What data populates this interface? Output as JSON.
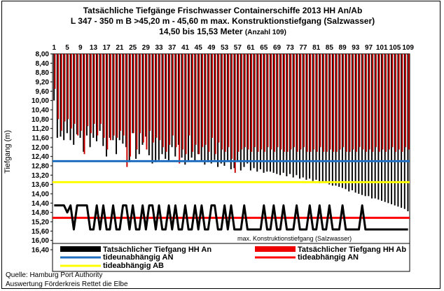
{
  "header": {
    "title_line1": "Tatsächliche Tiefgänge Frischwasser Containerschiffe 2013 HH An/Ab",
    "title_line2": "L 347 - 350 m B >45,20 m - 45,60 m max. Konstruktionstiefgang (Salzwasser)",
    "title_line3": "14,50 bis 15,53 Meter",
    "title_count": "(Anzahl 109)"
  },
  "chart_data": {
    "type": "bar",
    "ylabel": "Tiefgang (m)",
    "y_inverted": true,
    "ylim": [
      8.0,
      16.4
    ],
    "y_ticks": [
      "8,00",
      "8,40",
      "8,80",
      "9,20",
      "9,60",
      "10,00",
      "10,40",
      "10,80",
      "11,20",
      "11,60",
      "12,00",
      "12,40",
      "12,80",
      "13,20",
      "13,60",
      "14,00",
      "14,40",
      "14,80",
      "15,20",
      "15,60",
      "16,00",
      "16,40"
    ],
    "x_ticks": [
      "1",
      "5",
      "9",
      "13",
      "17",
      "21",
      "25",
      "29",
      "33",
      "37",
      "41",
      "45",
      "49",
      "53",
      "57",
      "61",
      "65",
      "69",
      "73",
      "77",
      "81",
      "85",
      "89",
      "93",
      "97",
      "101",
      "105",
      "109"
    ],
    "x_count": 109,
    "series": [
      {
        "name": "Tatsächlicher Tiefgang HH An",
        "color": "#000000",
        "values": [
          10.0,
          11.6,
          11.55,
          11.7,
          11.4,
          11.7,
          11.9,
          11.45,
          11.6,
          12.2,
          11.5,
          12.0,
          11.6,
          11.75,
          11.3,
          11.95,
          12.4,
          11.6,
          11.7,
          12.3,
          11.7,
          11.85,
          12.0,
          12.65,
          11.4,
          12.5,
          12.3,
          11.9,
          11.55,
          12.35,
          12.7,
          12.65,
          12.55,
          12.3,
          12.5,
          12.6,
          12.0,
          12.4,
          11.9,
          12.45,
          12.75,
          12.6,
          12.45,
          12.6,
          12.3,
          12.6,
          12.75,
          12.65,
          12.7,
          12.55,
          12.85,
          12.7,
          12.8,
          12.6,
          12.95,
          12.9,
          12.6,
          13.0,
          12.85,
          12.7,
          13.0,
          12.9,
          13.05,
          12.95,
          13.1,
          13.05,
          13.05,
          13.1,
          13.15,
          13.2,
          13.1,
          13.25,
          13.15,
          13.3,
          13.2,
          13.35,
          13.3,
          13.4,
          13.35,
          13.45,
          13.4,
          13.55,
          13.5,
          13.5,
          13.6,
          13.65,
          13.65,
          13.7,
          13.75,
          13.8,
          13.9,
          13.85,
          13.95,
          14.0,
          14.05,
          14.1,
          14.1,
          14.2,
          14.2,
          14.25,
          14.3,
          14.35,
          14.4,
          14.45,
          14.5,
          14.55,
          14.6,
          14.65,
          14.75
        ]
      },
      {
        "name": "Tatsächlicher Tiefgang HH Ab",
        "color": "#cc0000",
        "values": [
          9.5,
          10.8,
          11.3,
          10.9,
          10.8,
          11.2,
          11.0,
          11.5,
          11.3,
          12.3,
          11.1,
          11.4,
          11.0,
          11.5,
          11.0,
          11.6,
          12.1,
          11.7,
          11.5,
          11.6,
          11.3,
          11.5,
          12.85,
          12.4,
          11.4,
          12.1,
          11.4,
          11.8,
          12.1,
          11.3,
          11.8,
          11.6,
          11.7,
          12.0,
          12.2,
          11.9,
          11.5,
          12.0,
          12.7,
          12.1,
          12.3,
          11.5,
          12.2,
          11.9,
          12.3,
          12.0,
          11.9,
          12.2,
          11.6,
          12.3,
          11.8,
          12.1,
          12.2,
          12.0,
          12.5,
          13.1,
          12.2,
          12.1,
          12.0,
          12.1,
          12.2,
          12.0,
          12.2,
          12.1,
          12.2,
          12.0,
          12.1,
          12.2,
          12.0,
          12.1,
          12.2,
          12.2,
          12.1,
          12.0,
          12.2,
          12.1,
          12.0,
          12.2,
          12.2,
          12.1,
          12.2,
          12.0,
          12.2,
          12.2,
          12.1,
          12.2,
          12.2,
          12.1,
          12.0,
          12.2,
          12.2,
          12.1,
          12.2,
          12.0,
          12.1,
          12.2,
          12.1,
          12.2,
          12.0,
          12.2,
          12.1,
          12.2,
          12.1,
          12.0,
          12.2,
          12.1,
          12.2,
          12.0,
          12.1
        ]
      },
      {
        "name": "tideunabhängig AN",
        "color": "#1f6fbf",
        "type": "hline",
        "value": 12.6
      },
      {
        "name": "tideabhängig AN",
        "color": "#ff0000",
        "type": "hline",
        "value": 15.03
      },
      {
        "name": "tideabhängig AB",
        "color": "#ffff00",
        "type": "hline",
        "value": 13.5
      },
      {
        "name": "max. Konstruktionstiefgang (Salzwasser)",
        "color": "#000000",
        "type": "line",
        "values": [
          14.5,
          14.5,
          14.5,
          14.5,
          14.8,
          14.5,
          15.53,
          14.5,
          14.5,
          14.5,
          14.5,
          15.53,
          15.53,
          14.5,
          15.53,
          14.5,
          15.53,
          15.53,
          14.5,
          15.53,
          15.53,
          14.5,
          14.5,
          15.53,
          14.5,
          15.53,
          15.53,
          14.5,
          15.53,
          14.5,
          14.5,
          15.53,
          14.5,
          15.53,
          15.53,
          14.5,
          15.53,
          14.5,
          15.53,
          15.53,
          14.5,
          15.53,
          15.53,
          14.5,
          15.53,
          14.5,
          15.53,
          15.53,
          14.5,
          14.5,
          15.53,
          15.53,
          14.5,
          15.53,
          14.5,
          15.53,
          15.53,
          15.53,
          14.5,
          15.53,
          15.53,
          15.53,
          15.53,
          15.53,
          14.5,
          15.53,
          15.53,
          14.5,
          15.53,
          15.53,
          14.5,
          15.53,
          15.53,
          15.53,
          14.5,
          15.53,
          15.53,
          15.53,
          14.5,
          15.53,
          15.53,
          14.5,
          15.53,
          15.53,
          14.5,
          15.53,
          15.53,
          15.53,
          14.5,
          15.53,
          15.53,
          15.53,
          15.53,
          15.53,
          14.5,
          15.53,
          15.53,
          15.53,
          15.53,
          15.53,
          15.53,
          15.53,
          15.53,
          15.53,
          15.53,
          15.53,
          15.53,
          15.53,
          15.53
        ]
      }
    ],
    "annotation": "max. Konstruktionstiefgang (Salzwasser)",
    "grid": false
  },
  "legend": {
    "an_label": "Tatsächlicher Tiefgang HH An",
    "ab_label": "Tatsächlicher Tiefgang HH Ab",
    "tideun_label": "tideunabhängig AN",
    "tideab_an_label": "tideabhängig AN",
    "tideab_ab_label": "tideabhängig AB"
  },
  "footer": {
    "source": "Quelle: Hamburg Port Authority",
    "evaluation": "Auswertung Förderkreis Rettet die Elbe"
  }
}
